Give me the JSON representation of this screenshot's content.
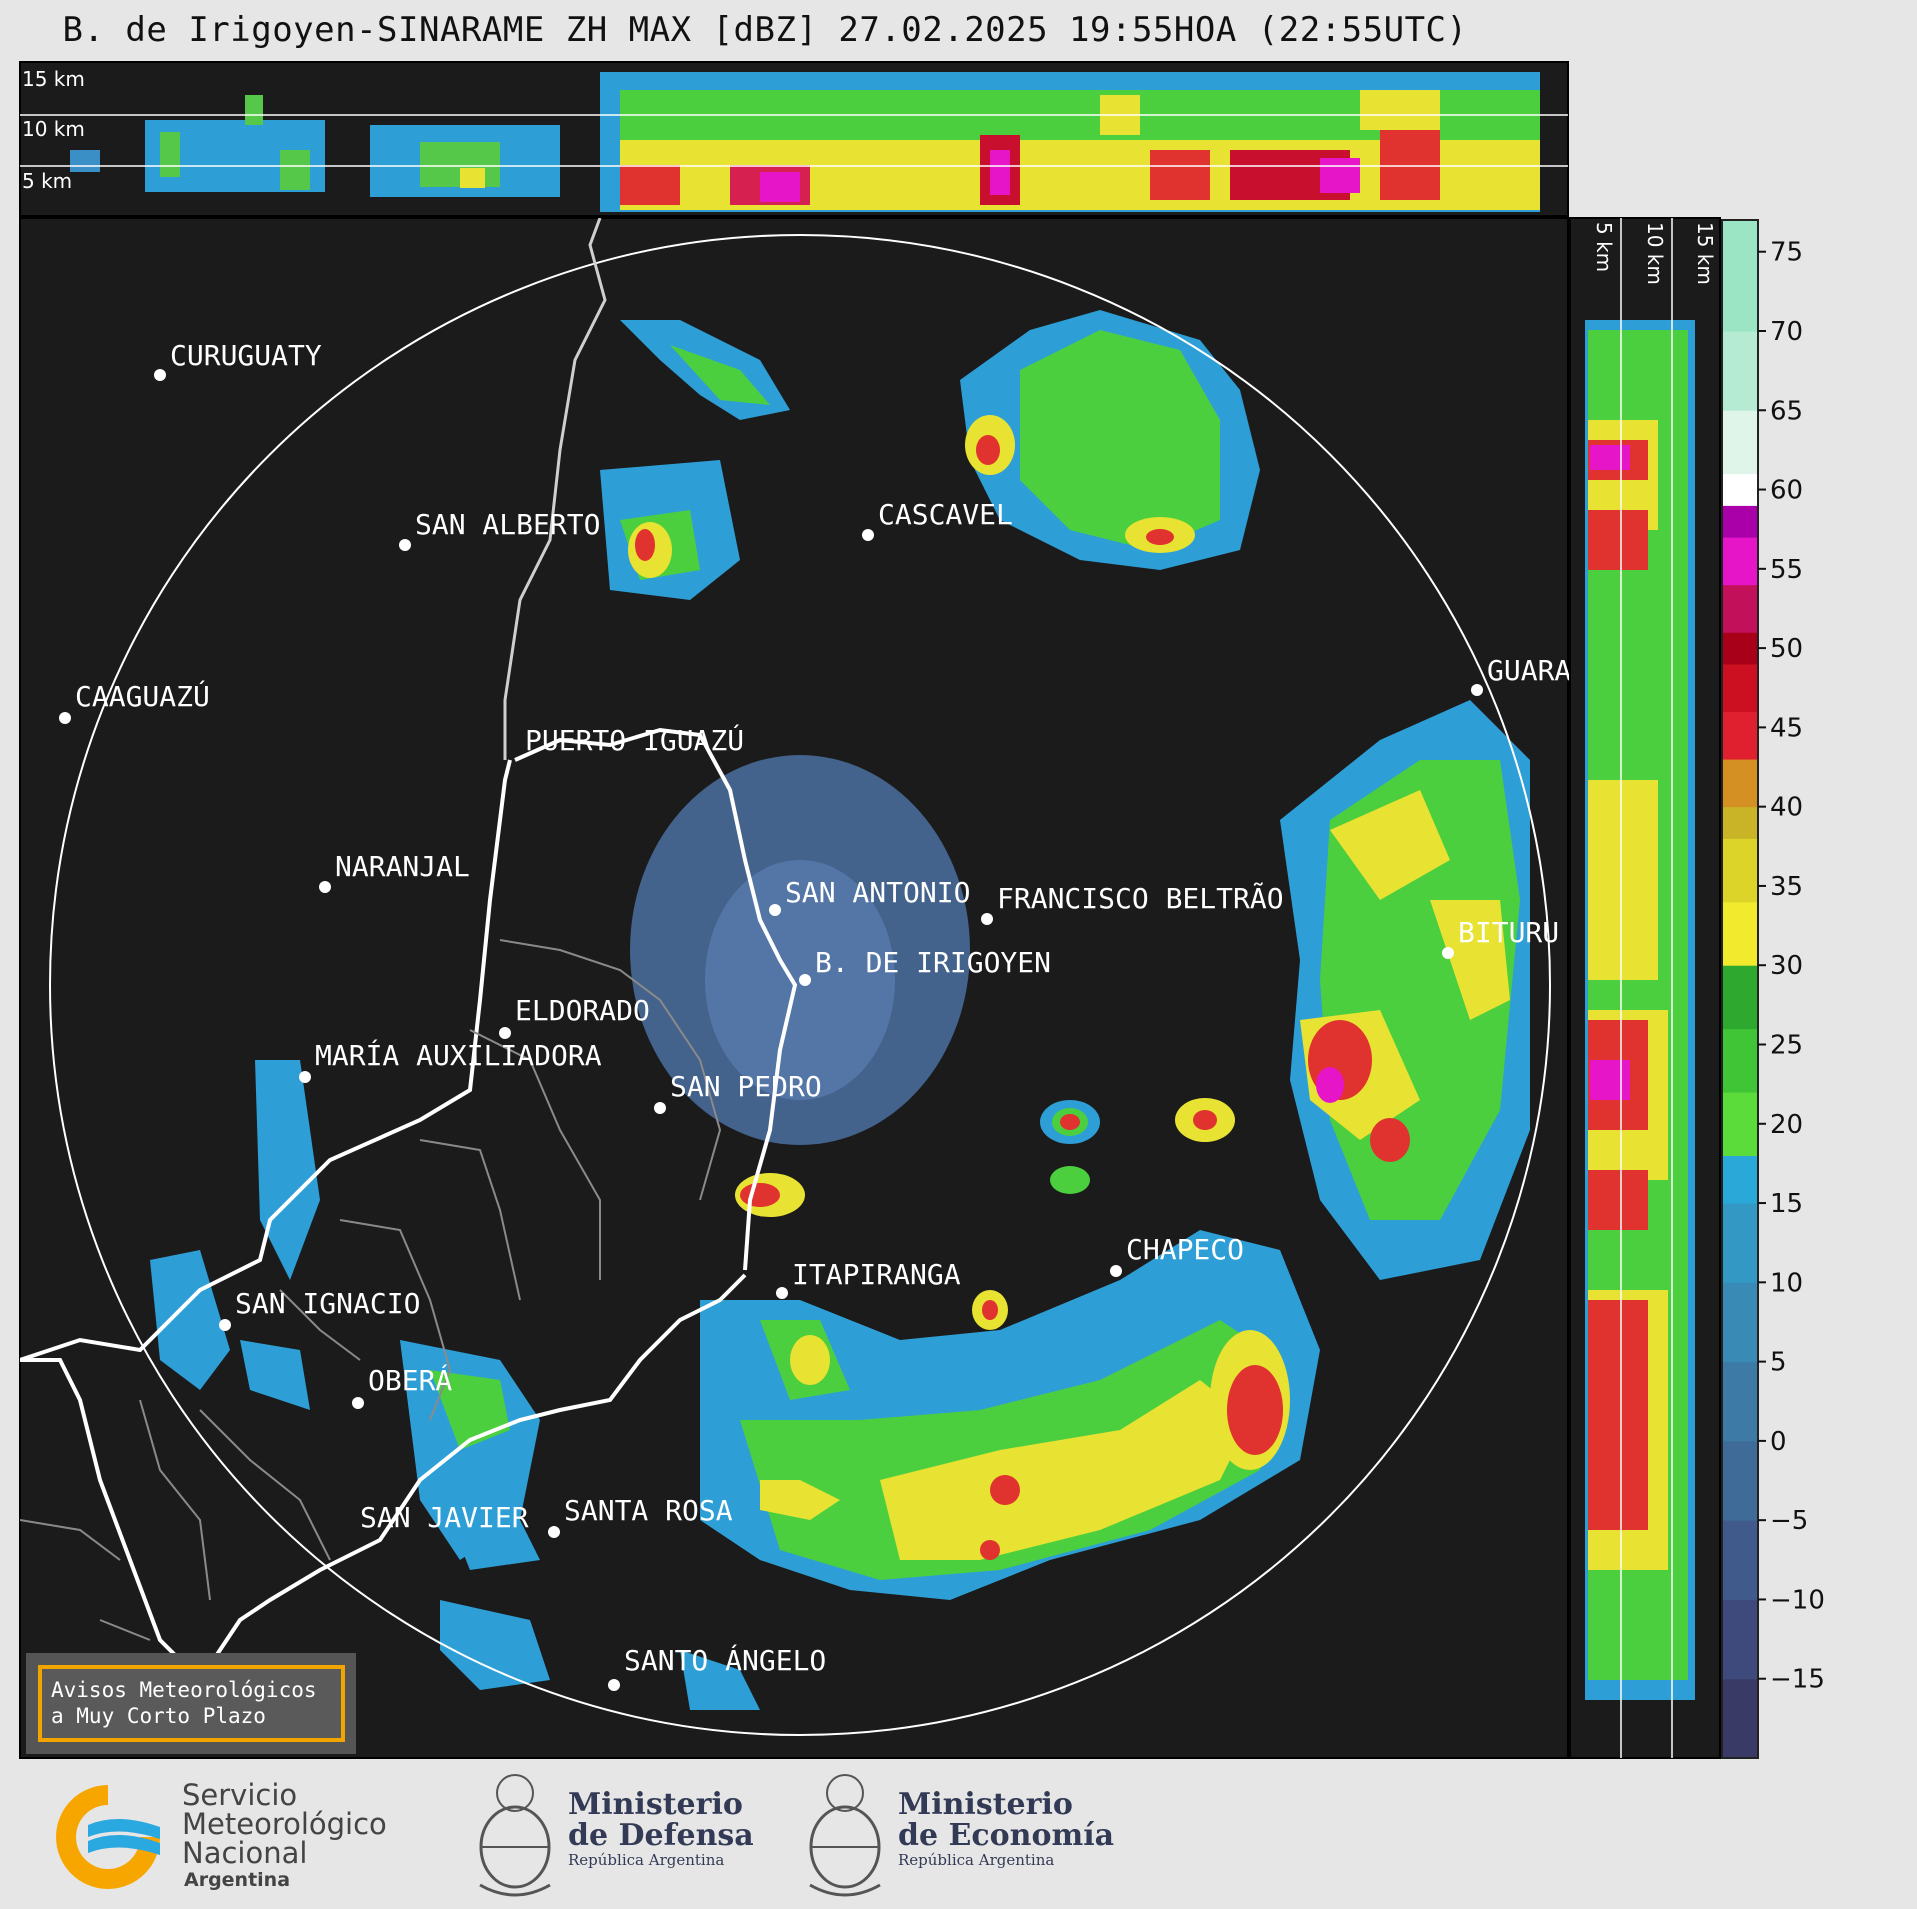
{
  "title": "B. de Irigoyen-SINARAME ZH MAX [dBZ] 27.02.2025 19:55HOA (22:55UTC)",
  "profile_top_labels": [
    "15 km",
    "10 km",
    "5 km"
  ],
  "profile_side_labels": [
    "5 km",
    "10 km",
    "15 km"
  ],
  "colorbar": {
    "ticks": [
      "75",
      "70",
      "65",
      "60",
      "55",
      "50",
      "45",
      "40",
      "35",
      "30",
      "25",
      "20",
      "15",
      "10",
      "5",
      "0",
      "−5",
      "−10",
      "−15"
    ]
  },
  "places": [
    {
      "id": "curuguaty",
      "name": "CURUGUATY"
    },
    {
      "id": "san-alberto",
      "name": "SAN ALBERTO"
    },
    {
      "id": "cascavel",
      "name": "CASCAVEL"
    },
    {
      "id": "caaguazu",
      "name": "CAAGUAZÚ"
    },
    {
      "id": "puerto-iguazu",
      "name": "PUERTO IGUAZÚ"
    },
    {
      "id": "guarapuava",
      "name": "GUARA"
    },
    {
      "id": "naranjal",
      "name": "NARANJAL"
    },
    {
      "id": "san-antonio",
      "name": "SAN ANTONIO"
    },
    {
      "id": "francisco-beltrao",
      "name": "FRANCISCO BELTRÃO"
    },
    {
      "id": "bituruna",
      "name": "BITURU"
    },
    {
      "id": "b-de-irigoyen",
      "name": "B. DE IRIGOYEN"
    },
    {
      "id": "eldorado",
      "name": "ELDORADO"
    },
    {
      "id": "maria-auxiliadora",
      "name": "MARÍA AUXILIADORA"
    },
    {
      "id": "san-pedro",
      "name": "SAN PEDRO"
    },
    {
      "id": "itapiranga",
      "name": "ITAPIRANGA"
    },
    {
      "id": "chapeco",
      "name": "CHAPECO"
    },
    {
      "id": "san-ignacio",
      "name": "SAN IGNACIO"
    },
    {
      "id": "obera",
      "name": "OBERÁ"
    },
    {
      "id": "santa-rosa",
      "name": "SANTA ROSA"
    },
    {
      "id": "san-javier",
      "name": "SAN JAVIER"
    },
    {
      "id": "santo-angelo",
      "name": "SANTO ÁNGELO"
    }
  ],
  "warning_box": {
    "line1": "Avisos Meteorológicos",
    "line2": "a Muy Corto Plazo"
  },
  "logos": {
    "smn": {
      "line1": "Servicio",
      "line2": "Meteorológico",
      "line3": "Nacional",
      "line4": "Argentina"
    },
    "defensa": {
      "line1": "Ministerio",
      "line2": "de Defensa",
      "line3": "República Argentina"
    },
    "economia": {
      "line1": "Ministerio",
      "line2": "de Economía",
      "line3": "República Argentina"
    }
  },
  "colors": {
    "background": "#1b1b1b",
    "page": "#e6e6e6",
    "warning_border": "#f2a400"
  }
}
